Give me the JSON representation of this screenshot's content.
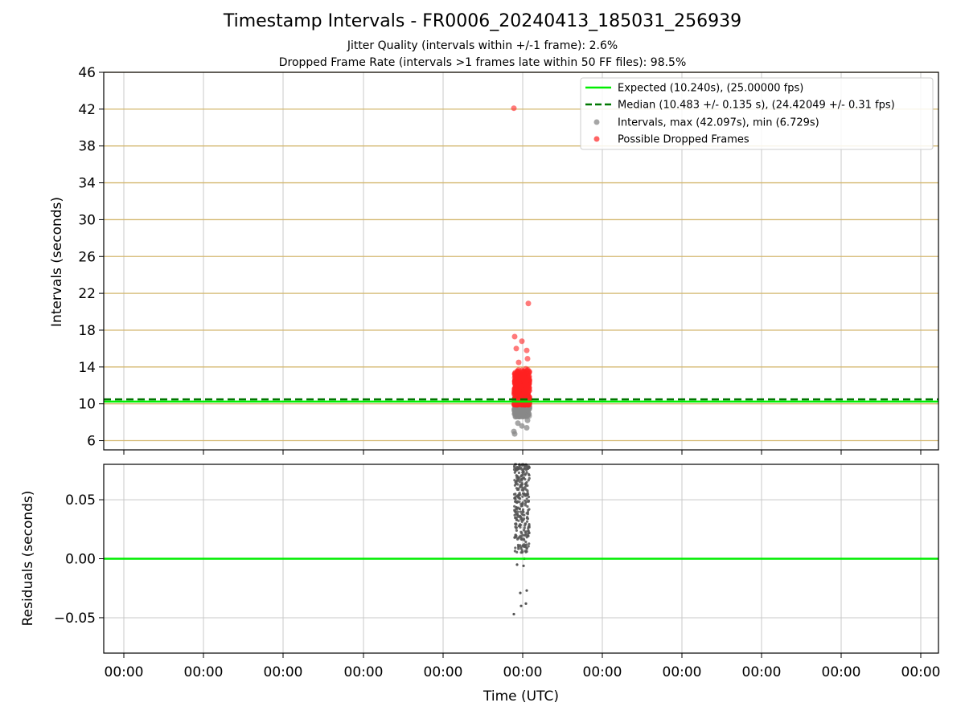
{
  "title": "Timestamp Intervals - FR0006_20240413_185031_256939",
  "subtitle_1": "Jitter Quality (intervals within +/-1 frame): 2.6%",
  "subtitle_2": "Dropped Frame Rate (intervals >1 frames late within 50 FF files): 98.5%",
  "colors": {
    "expected": "#00ee00",
    "median": "#007700",
    "intervals": "#888888",
    "dropped": "#ff2222",
    "ref_lines": "#d4b870",
    "grid": "#c8c8c8"
  },
  "chart_data": [
    {
      "type": "scatter",
      "ylabel": "Intervals (seconds)",
      "ylim": [
        5,
        46
      ],
      "yticks": [
        6,
        10,
        14,
        18,
        22,
        26,
        30,
        34,
        38,
        42,
        46
      ],
      "grid": true,
      "legend_position": "top-right",
      "legend": [
        "Expected (10.240s), (25.00000 fps)",
        "Median (10.483 +/- 0.135 s), (24.42049 +/- 0.31 fps)",
        "Intervals, max (42.097s), min (6.729s)",
        "Possible Dropped Frames"
      ],
      "expected_interval": 10.24,
      "median_interval": 10.483,
      "interval_max": 42.097,
      "interval_min": 6.729,
      "x": [
        -0.1,
        -0.09,
        -0.07,
        -0.05,
        -0.03,
        0.0,
        0.02,
        0.04,
        0.06,
        0.07,
        -0.08,
        0.03,
        0.05,
        -0.06
      ],
      "series": [
        {
          "name": "Intervals, max (42.097s), min (6.729s)",
          "x": [
            -0.09,
            -0.1,
            -0.05,
            0.0,
            0.06,
            0.07,
            -0.08,
            0.02,
            0.04,
            -0.03
          ],
          "y": [
            6.73,
            7.0,
            7.9,
            7.6,
            7.4,
            8.2,
            8.6,
            9.1,
            9.4,
            9.8
          ]
        },
        {
          "name": "Possible Dropped Frames",
          "x": [
            -0.1,
            0.08,
            -0.09,
            -0.07,
            0.0,
            0.06,
            0.07,
            -0.04,
            0.05,
            0.02,
            -0.08,
            0.03
          ],
          "y": [
            42.1,
            20.9,
            17.3,
            16.0,
            16.8,
            15.8,
            14.9,
            14.5,
            13.8,
            12.9,
            12.1,
            11.4
          ]
        }
      ]
    },
    {
      "type": "scatter",
      "ylabel": "Residuals (seconds)",
      "xlabel": "Time (UTC)",
      "ylim": [
        -0.08,
        0.08
      ],
      "yticks": [
        "−0.05",
        "0.00",
        "0.05"
      ],
      "ytick_values": [
        -0.05,
        0.0,
        0.05
      ],
      "xticks": [
        "00:00",
        "00:00",
        "00:00",
        "00:00",
        "00:00",
        "00:00",
        "00:00",
        "00:00",
        "00:00",
        "00:00",
        "00:00"
      ],
      "grid": true,
      "x": [
        -0.1,
        -0.02,
        0.06,
        -0.01,
        0.05,
        0.02,
        -0.06,
        0.03
      ],
      "y": [
        -0.047,
        -0.029,
        -0.027,
        -0.04,
        -0.038,
        -0.006,
        -0.005,
        0.0
      ]
    }
  ]
}
